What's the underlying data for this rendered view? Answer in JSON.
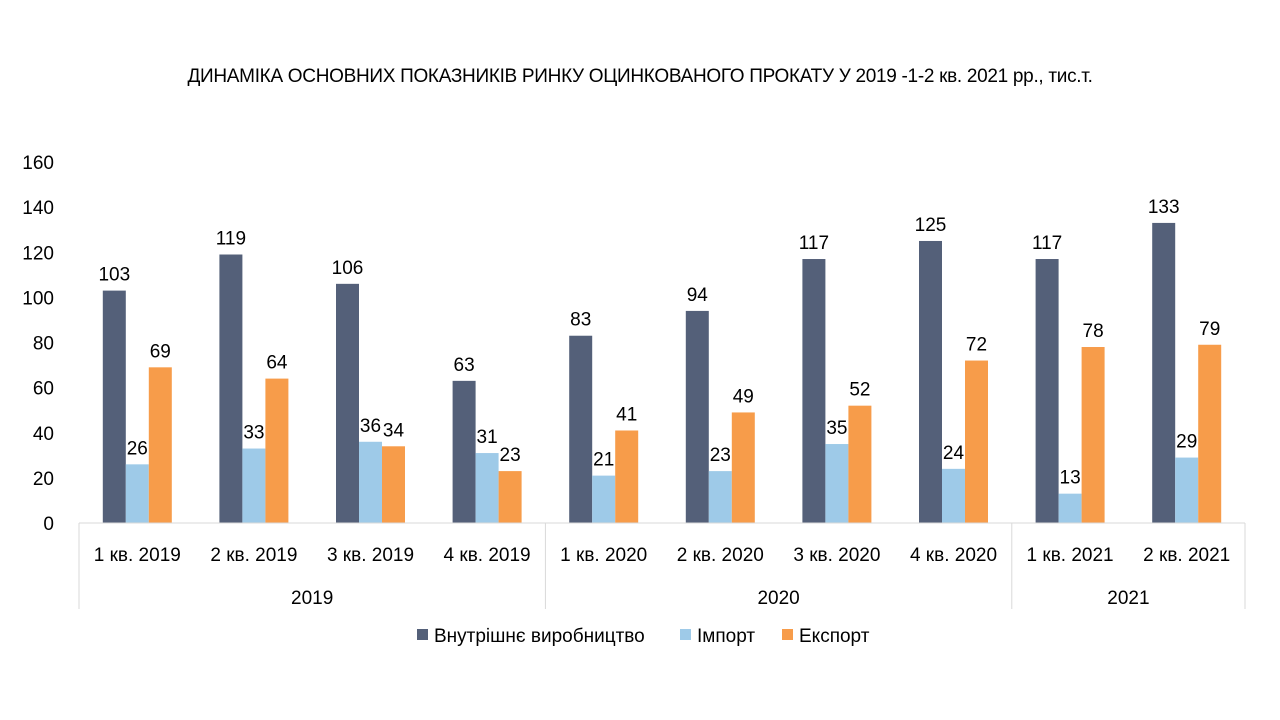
{
  "chart_data": {
    "type": "bar",
    "title": "ДИНАМІКА ОСНОВНИХ ПОКАЗНИКІВ РИНКУ ОЦИНКОВАНОГО ПРОКАТУ У 2019 -1-2 кв. 2021 рр., тис.т.",
    "xlabel": "",
    "ylabel": "",
    "ylim": [
      0,
      160
    ],
    "yticks": [
      0,
      20,
      40,
      60,
      80,
      100,
      120,
      140,
      160
    ],
    "categories": [
      "1 кв. 2019",
      "2 кв. 2019",
      "3 кв. 2019",
      "4 кв. 2019",
      "1 кв. 2020",
      "2 кв. 2020",
      "3 кв. 2020",
      "4 кв. 2020",
      "1 кв. 2021",
      "2 кв. 2021"
    ],
    "groups": [
      {
        "label": "2019",
        "count": 4
      },
      {
        "label": "2020",
        "count": 4
      },
      {
        "label": "2021",
        "count": 2
      }
    ],
    "series": [
      {
        "name": "Внутрішнє виробництво",
        "color": "#546079",
        "values": [
          103,
          119,
          106,
          63,
          83,
          94,
          117,
          125,
          117,
          133
        ]
      },
      {
        "name": "Імпорт",
        "color": "#9ecae8",
        "values": [
          26,
          33,
          36,
          31,
          21,
          23,
          35,
          24,
          13,
          29
        ]
      },
      {
        "name": "Експорт",
        "color": "#f79c4a",
        "values": [
          69,
          64,
          34,
          23,
          41,
          49,
          52,
          72,
          78,
          79
        ]
      }
    ],
    "grid": false,
    "legend_position": "bottom",
    "data_labels": true
  }
}
